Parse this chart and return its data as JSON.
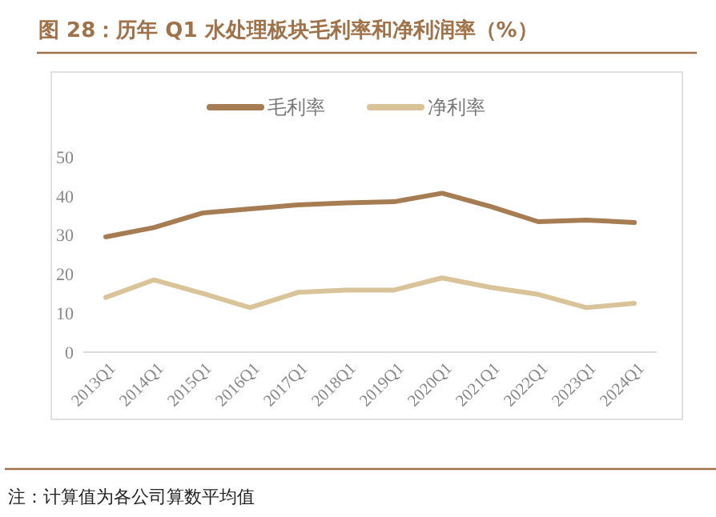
{
  "chart_data": {
    "type": "line",
    "title": "图 28：历年 Q1 水处理板块毛利率和净利润率（%）",
    "categories": [
      "2013Q1",
      "2014Q1",
      "2015Q1",
      "2016Q1",
      "2017Q1",
      "2018Q1",
      "2019Q1",
      "2020Q1",
      "2021Q1",
      "2022Q1",
      "2023Q1",
      "2024Q1"
    ],
    "series": [
      {
        "name": "毛利率",
        "color": "#a67c52",
        "values": [
          29.5,
          31.9,
          35.6,
          36.7,
          37.7,
          38.2,
          38.5,
          40.7,
          37.3,
          33.4,
          33.8,
          33.2
        ]
      },
      {
        "name": "净利率",
        "color": "#d9c49a",
        "values": [
          14.0,
          18.5,
          15.1,
          11.4,
          15.3,
          15.9,
          15.9,
          19.0,
          16.6,
          14.8,
          11.4,
          12.5
        ]
      }
    ],
    "ylim": [
      0,
      50
    ],
    "yticks": [
      0,
      10,
      20,
      30,
      40,
      50
    ],
    "grid": false,
    "legend": "top",
    "marker": "none",
    "line_style": "solid",
    "annotations": [
      "注：计算值为各公司算数平均值"
    ]
  }
}
